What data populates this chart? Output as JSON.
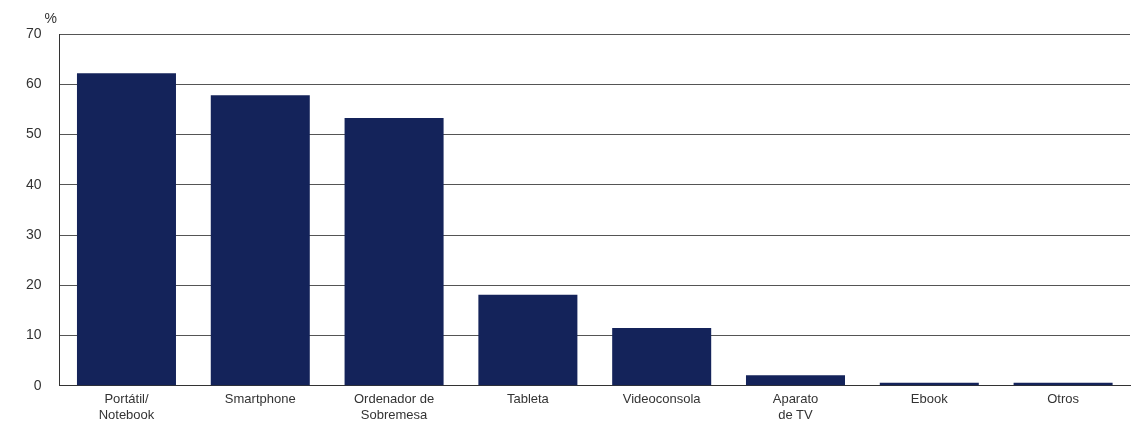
{
  "chart_data": {
    "type": "bar",
    "ylabel": "%",
    "categories": [
      "Portátil/\nNotebook",
      "Smartphone",
      "Ordenador de\nSobremesa",
      "Tableta",
      "Videoconsola",
      "Aparato\nde TV",
      "Ebook",
      "Otros"
    ],
    "values": [
      62.2,
      57.8,
      53.3,
      18.1,
      11.5,
      2.1,
      0.6,
      0.6
    ],
    "color": "#14235a",
    "ylim": [
      0,
      70
    ],
    "yticks": [
      0,
      10,
      20,
      30,
      40,
      50,
      60,
      70
    ],
    "grid": "y"
  }
}
